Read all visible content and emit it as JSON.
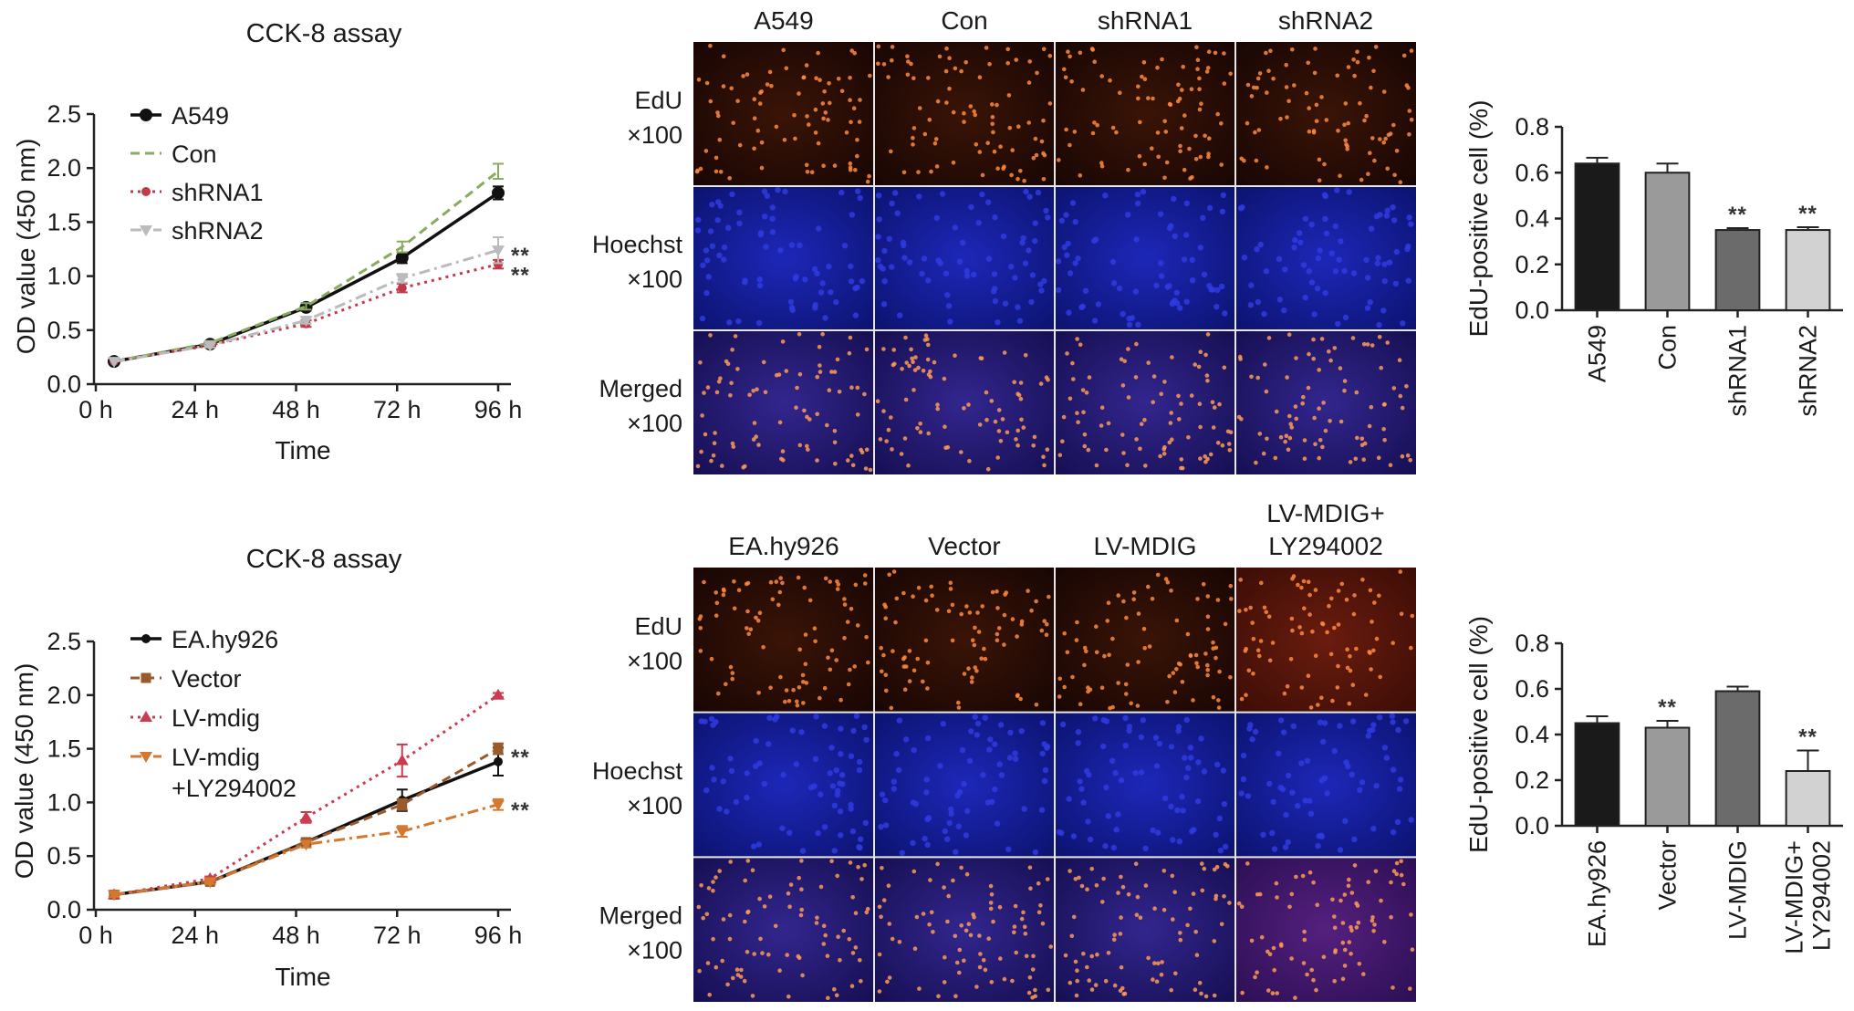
{
  "panels": {
    "line_charts": [
      {
        "id": "top",
        "title": "CCK-8 assay",
        "ylabel": "OD value (450 nm)",
        "xlabel": "Time"
      },
      {
        "id": "bottom",
        "title": "CCK-8 assay",
        "ylabel": "OD value (450 nm)",
        "xlabel": "Time"
      }
    ],
    "microscopy": [
      {
        "id": "top",
        "columns": [
          "A549",
          "Con",
          "shRNA1",
          "shRNA2"
        ],
        "rows": [
          {
            "name": "EdU",
            "mag": "×100",
            "stain": "edu"
          },
          {
            "name": "Hoechst",
            "mag": "×100",
            "stain": "hoechst"
          },
          {
            "name": "Merged",
            "mag": "×100",
            "stain": "merged"
          }
        ]
      },
      {
        "id": "bottom",
        "columns": [
          "EA.hy926",
          "Vector",
          "LV-MDIG",
          "LV-MDIG+\nLY294002"
        ],
        "rows": [
          {
            "name": "EdU",
            "mag": "×100",
            "stain": "edu"
          },
          {
            "name": "Hoechst",
            "mag": "×100",
            "stain": "hoechst"
          },
          {
            "name": "Merged",
            "mag": "×100",
            "stain": "merged"
          }
        ]
      }
    ]
  },
  "chart_data": [
    {
      "type": "line",
      "title": "CCK-8 assay",
      "xlabel": "Time",
      "ylabel": "OD value (450 nm)",
      "x_ticks": [
        "0 h",
        "24 h",
        "48 h",
        "72 h",
        "96 h"
      ],
      "x": [
        0,
        24,
        48,
        72,
        96
      ],
      "y_ticks": [
        "0.0",
        "0.5",
        "1.0",
        "1.5",
        "2.0",
        "2.5"
      ],
      "ylim": [
        0,
        2.5
      ],
      "legend_position": "top-left",
      "series": [
        {
          "name": "A549",
          "values": [
            0.21,
            0.37,
            0.71,
            1.17,
            1.77
          ],
          "errors": [
            0.01,
            0.02,
            0.03,
            0.05,
            0.06
          ],
          "color": "#111111",
          "style": "solid",
          "marker": "circle"
        },
        {
          "name": "Con",
          "values": [
            0.21,
            0.38,
            0.72,
            1.27,
            1.97
          ],
          "errors": [
            0.01,
            0.02,
            0.03,
            0.05,
            0.07
          ],
          "color": "#8aaa60",
          "style": "dashed",
          "marker": "none"
        },
        {
          "name": "shRNA1",
          "values": [
            0.21,
            0.36,
            0.56,
            0.89,
            1.11
          ],
          "errors": [
            0.01,
            0.02,
            0.03,
            0.04,
            0.04
          ],
          "color": "#c23a4a",
          "style": "dotted",
          "marker": "dot"
        },
        {
          "name": "shRNA2",
          "values": [
            0.21,
            0.36,
            0.59,
            0.98,
            1.24
          ],
          "errors": [
            0.01,
            0.02,
            0.03,
            0.04,
            0.12
          ],
          "color": "#bbbbbb",
          "style": "dashdot",
          "marker": "triangle-down"
        }
      ],
      "annotations": [
        {
          "x": 96,
          "y": 1.24,
          "text": "**"
        },
        {
          "x": 96,
          "y": 1.06,
          "text": "**"
        }
      ]
    },
    {
      "type": "bar",
      "ylabel": "EdU-positive cell (%)",
      "categories": [
        "A549",
        "Con",
        "shRNA1",
        "shRNA2"
      ],
      "values": [
        0.64,
        0.6,
        0.35,
        0.35
      ],
      "errors": [
        0.025,
        0.04,
        0.008,
        0.012
      ],
      "colors": [
        "#1a1a1a",
        "#9a9a9a",
        "#6b6b6b",
        "#d2d2d2"
      ],
      "y_ticks": [
        "0.0",
        "0.2",
        "0.4",
        "0.6",
        "0.8"
      ],
      "ylim": [
        0,
        0.8
      ],
      "annotations": [
        "",
        "",
        "**",
        "**"
      ]
    },
    {
      "type": "line",
      "title": "CCK-8 assay",
      "xlabel": "Time",
      "ylabel": "OD value (450 nm)",
      "x_ticks": [
        "0 h",
        "24 h",
        "48 h",
        "72 h",
        "96 h"
      ],
      "x": [
        0,
        24,
        48,
        72,
        96
      ],
      "y_ticks": [
        "0.0",
        "0.5",
        "1.0",
        "1.5",
        "2.0",
        "2.5"
      ],
      "ylim": [
        0,
        2.5
      ],
      "legend_position": "top-left",
      "series": [
        {
          "name": "EA.hy926",
          "values": [
            0.14,
            0.26,
            0.63,
            1.02,
            1.38
          ],
          "errors": [
            0.02,
            0.02,
            0.03,
            0.1,
            0.13
          ],
          "color": "#111111",
          "style": "solid",
          "marker": "dot"
        },
        {
          "name": "Vector",
          "values": [
            0.14,
            0.26,
            0.63,
            0.98,
            1.5
          ],
          "errors": [
            0.02,
            0.02,
            0.03,
            0.05,
            0.05
          ],
          "color": "#9b5a2c",
          "style": "dashed",
          "marker": "square"
        },
        {
          "name": "LV-mdig",
          "values": [
            0.14,
            0.29,
            0.86,
            1.39,
            2.0
          ],
          "errors": [
            0.02,
            0.02,
            0.05,
            0.15,
            0.02
          ],
          "color": "#cc3a4f",
          "style": "dotted",
          "marker": "triangle"
        },
        {
          "name": "LV-mdig\n+LY294002",
          "values": [
            0.14,
            0.26,
            0.61,
            0.73,
            0.98
          ],
          "errors": [
            0.02,
            0.02,
            0.03,
            0.05,
            0.05
          ],
          "color": "#d4782f",
          "style": "dashdot",
          "marker": "triangle-down"
        }
      ],
      "annotations": [
        {
          "x": 96,
          "y": 1.47,
          "text": "**"
        },
        {
          "x": 96,
          "y": 0.98,
          "text": "**"
        }
      ]
    },
    {
      "type": "bar",
      "ylabel": "EdU-positive cell (%)",
      "categories": [
        "EA.hy926",
        "Vector",
        "LV-MDIG",
        "LV-MDIG+\nLY294002"
      ],
      "values": [
        0.45,
        0.43,
        0.59,
        0.24
      ],
      "errors": [
        0.03,
        0.03,
        0.02,
        0.09
      ],
      "colors": [
        "#1a1a1a",
        "#9a9a9a",
        "#6b6b6b",
        "#d2d2d2"
      ],
      "y_ticks": [
        "0.0",
        "0.2",
        "0.4",
        "0.6",
        "0.8"
      ],
      "ylim": [
        0,
        0.8
      ],
      "annotations": [
        "",
        "**",
        "",
        "**"
      ]
    }
  ]
}
